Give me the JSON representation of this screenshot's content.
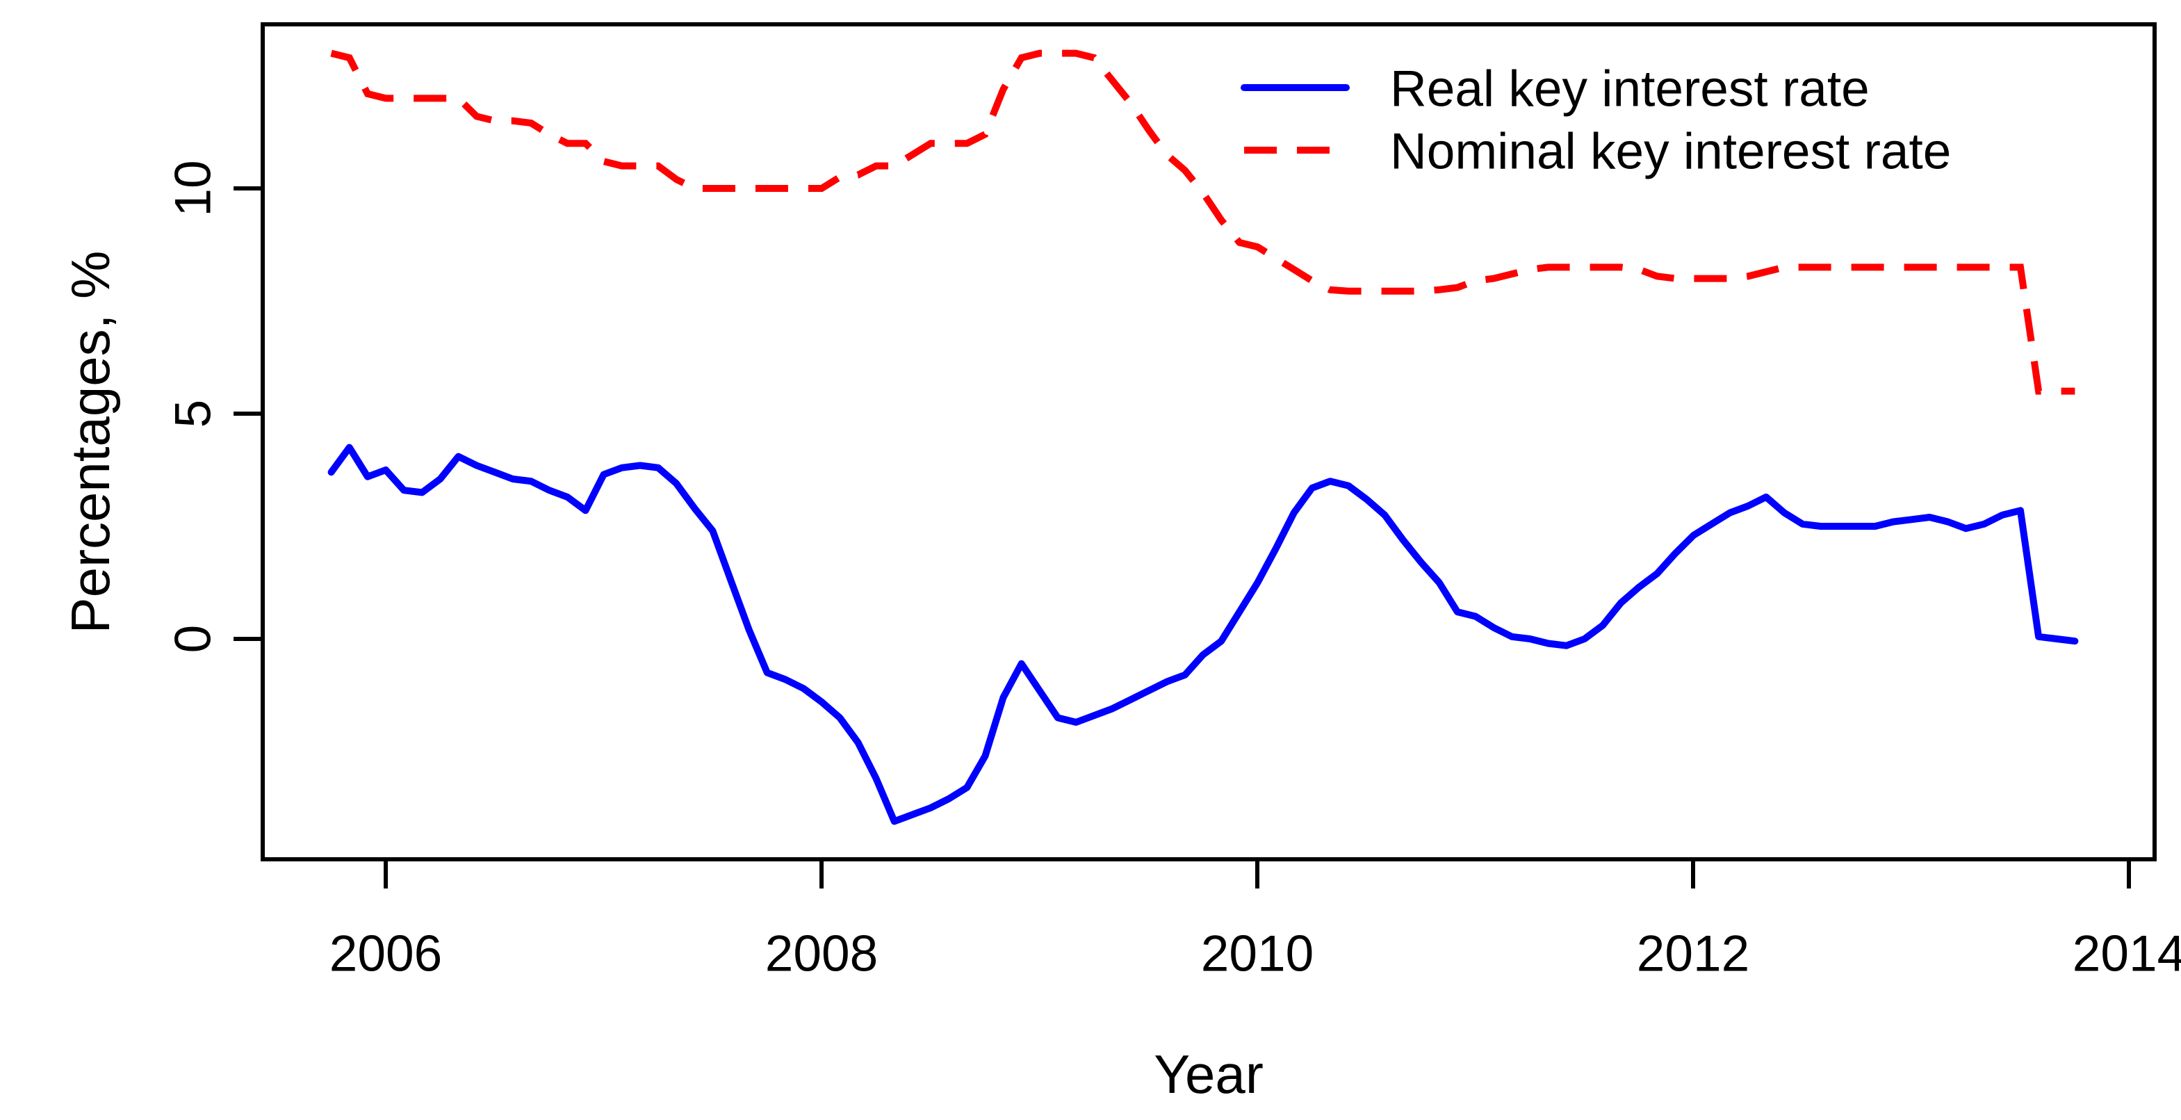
{
  "chart_data": {
    "type": "line",
    "title": "",
    "xlabel": "Year",
    "ylabel": "Percentages, %",
    "frequency": "monthly",
    "x_start": 2005.75,
    "x_step_years": 0.0833333,
    "x_axis": {
      "ticks": [
        2006,
        2008,
        2010,
        2012,
        2014
      ],
      "range_years": [
        2005.44,
        2014.12
      ]
    },
    "y_axis": {
      "ticks": [
        0,
        5,
        10
      ],
      "range": [
        -4.9,
        13.6
      ]
    },
    "grid": false,
    "legend_position": "top-right-inside",
    "series": [
      {
        "name": "Real key interest rate",
        "color": "#0000FF",
        "style": "solid",
        "values": [
          3.7,
          4.25,
          3.6,
          3.75,
          3.3,
          3.25,
          3.55,
          4.05,
          3.85,
          3.7,
          3.55,
          3.5,
          3.3,
          3.15,
          2.85,
          3.65,
          3.8,
          3.85,
          3.8,
          3.45,
          2.9,
          2.4,
          1.3,
          0.2,
          -0.75,
          -0.9,
          -1.1,
          -1.4,
          -1.75,
          -2.3,
          -3.1,
          -4.05,
          -3.9,
          -3.75,
          -3.55,
          -3.3,
          -2.6,
          -1.3,
          -0.55,
          -1.15,
          -1.75,
          -1.85,
          -1.7,
          -1.55,
          -1.35,
          -1.15,
          -0.95,
          -0.8,
          -0.35,
          -0.05,
          0.6,
          1.25,
          2.0,
          2.8,
          3.35,
          3.5,
          3.4,
          3.1,
          2.75,
          2.2,
          1.7,
          1.25,
          0.6,
          0.5,
          0.25,
          0.05,
          0.0,
          -0.1,
          -0.15,
          0.0,
          0.3,
          0.8,
          1.15,
          1.45,
          1.9,
          2.3,
          2.55,
          2.8,
          2.95,
          3.15,
          2.8,
          2.55,
          2.5,
          2.5,
          2.5,
          2.5,
          2.6,
          2.65,
          2.7,
          2.6,
          2.45,
          2.55,
          2.75,
          2.85,
          0.05,
          0.0,
          -0.05
        ]
      },
      {
        "name": "Nominal key interest rate",
        "color": "#FF0000",
        "style": "dashed",
        "values": [
          13,
          12.9,
          12.1,
          12,
          12,
          12,
          12,
          12,
          11.6,
          11.5,
          11.5,
          11.45,
          11.2,
          11,
          11,
          10.6,
          10.5,
          10.5,
          10.5,
          10.2,
          10,
          10,
          10,
          10,
          10,
          10,
          10,
          10,
          10.25,
          10.3,
          10.5,
          10.5,
          10.75,
          11,
          11,
          11,
          11.2,
          12.2,
          12.9,
          13,
          13,
          13,
          12.9,
          12.4,
          11.9,
          11.3,
          10.75,
          10.4,
          9.9,
          9.3,
          8.8,
          8.7,
          8.45,
          8.2,
          7.95,
          7.75,
          7.72,
          7.72,
          7.72,
          7.72,
          7.72,
          7.75,
          7.8,
          7.95,
          8,
          8.1,
          8.2,
          8.25,
          8.25,
          8.25,
          8.25,
          8.25,
          8.2,
          8.05,
          8,
          8,
          8,
          8,
          8.05,
          8.15,
          8.25,
          8.25,
          8.25,
          8.25,
          8.25,
          8.25,
          8.25,
          8.25,
          8.25,
          8.25,
          8.25,
          8.25,
          8.25,
          8.25,
          5.5,
          5.5,
          5.5
        ]
      }
    ]
  },
  "colors": {
    "real_line": "#0000FF",
    "nominal_line": "#FF0000",
    "axis": "#000000",
    "background": "#FFFFFF"
  },
  "legend": {
    "items": [
      {
        "label": "Real key interest rate"
      },
      {
        "label": "Nominal key interest rate"
      }
    ]
  }
}
